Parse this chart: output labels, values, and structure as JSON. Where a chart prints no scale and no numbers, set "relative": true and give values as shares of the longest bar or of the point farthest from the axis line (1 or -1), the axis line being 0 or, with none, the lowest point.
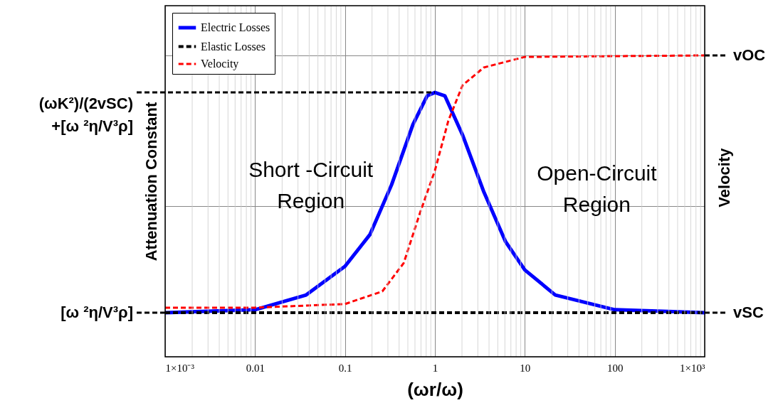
{
  "chart_data": {
    "type": "line",
    "relative": true,
    "log": "x",
    "grid": true,
    "legend": "top left",
    "xlabel": "(ωr/ω)",
    "ylabel": "Attenuation Constant",
    "y2label": "Velocity",
    "xlim": [
      0.001,
      1000
    ],
    "xticks": [
      {
        "value": 0.001,
        "label": "1×10⁻³"
      },
      0.01,
      0.1,
      1,
      10,
      100,
      {
        "value": 1000,
        "label": "1×10³"
      }
    ],
    "series": [
      {
        "name": "Electric Losses",
        "color": "#0000ff",
        "line_style": "solid",
        "x": [
          0.001,
          0.01,
          0.037,
          0.1,
          0.19,
          0.33,
          0.57,
          0.82,
          1,
          1.29,
          2.03,
          3.5,
          6.1,
          10,
          21.8,
          100,
          1000
        ],
        "values": [
          0.146,
          0.156,
          0.205,
          0.3,
          0.406,
          0.571,
          0.771,
          0.866,
          0.877,
          0.866,
          0.736,
          0.547,
          0.382,
          0.288,
          0.205,
          0.156,
          0.146
        ]
      },
      {
        "name": "Elastic Losses",
        "color": "#000000",
        "line_style": "dashed",
        "x": [
          0.001,
          1000
        ],
        "values": [
          0.146,
          0.146
        ]
      },
      {
        "name": "Velocity",
        "color": "#ff0000",
        "line_style": "dashed",
        "x": [
          0.001,
          0.01,
          0.1,
          0.26,
          0.45,
          0.68,
          1,
          1.41,
          2.03,
          3.5,
          10,
          1000
        ],
        "values": [
          0.163,
          0.163,
          0.175,
          0.217,
          0.311,
          0.476,
          0.618,
          0.783,
          0.901,
          0.96,
          0.995,
          1.0
        ]
      }
    ],
    "annotations": [
      {
        "text": "(ωK²)/(2vSC)\n+[ω ²η/V³ρ]",
        "x": 1,
        "y": 0.877
      },
      {
        "text": "[ω ²η/V³ρ]",
        "x": 0.001,
        "y": 0.146
      },
      {
        "text": "vOC",
        "x": 1000,
        "y": 1.0
      },
      {
        "text": "vSC",
        "x": 1000,
        "y": 0.146
      },
      "Short -Circuit\nRegion",
      "Open-Circuit\nRegion"
    ]
  }
}
